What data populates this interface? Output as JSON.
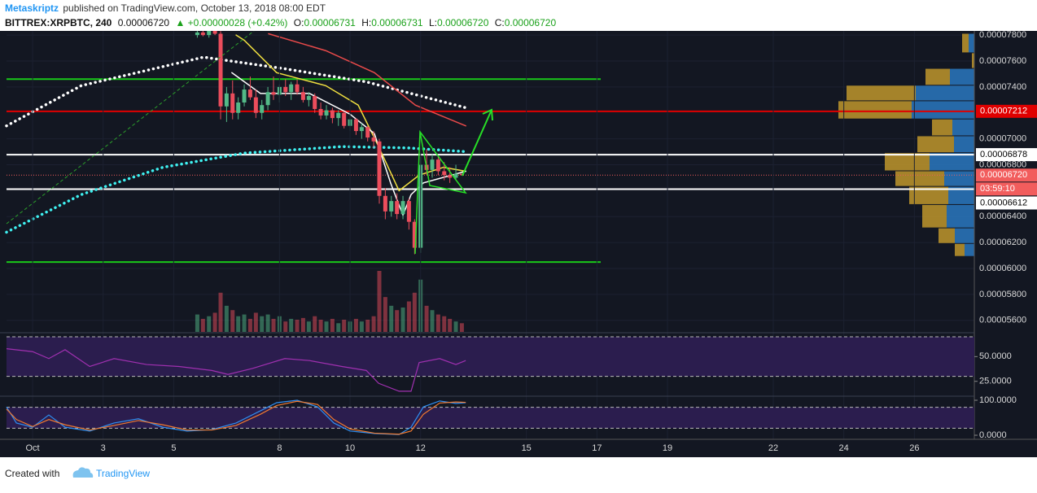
{
  "header": {
    "author": "Metaskriptz",
    "published": "published on TradingView.com, October 13, 2018 08:00 EDT"
  },
  "symbol": {
    "name": "BITTREX:XRPBTC, 240",
    "last": "0.00006720",
    "change": "▲ +0.00000028 (+0.42%)",
    "o_label": "O:",
    "open": "0.00006731",
    "h_label": "H:",
    "high": "0.00006731",
    "l_label": "L:",
    "low": "0.00006720",
    "c_label": "C:",
    "close": "0.00006720"
  },
  "chart_data": {
    "type": "candlestick",
    "up_color": "#53b987",
    "down_color": "#eb4d5c",
    "xlim": [
      0.26,
      27.7
    ],
    "xticks": [
      {
        "value": 1,
        "label": "Oct"
      },
      3,
      5,
      8,
      10,
      12,
      15,
      17,
      19,
      22,
      24,
      26
    ],
    "ylim": [
      5.511e-05,
      7.832e-05
    ],
    "yticks": [
      {
        "value": 7.8e-05,
        "label": "0.00007800"
      },
      {
        "value": 7.6e-05,
        "label": "0.00007600"
      },
      {
        "value": 7.4e-05,
        "label": "0.00007400"
      },
      {
        "value": 7e-05,
        "label": "0.00007000"
      },
      {
        "value": 6.8e-05,
        "label": "0.00006800"
      },
      {
        "value": 6.4e-05,
        "label": "0.00006400"
      },
      {
        "value": 6.2e-05,
        "label": "0.00006200"
      },
      {
        "value": 6e-05,
        "label": "0.00006000"
      },
      {
        "value": 5.8e-05,
        "label": "0.00005800"
      },
      {
        "value": 5.6e-05,
        "label": "0.00005600"
      }
    ],
    "grid": true,
    "x": [
      5.67,
      5.83,
      6,
      6.17,
      6.33,
      6.5,
      6.67,
      6.83,
      7,
      7.17,
      7.33,
      7.5,
      7.67,
      7.83,
      8,
      8.17,
      8.33,
      8.5,
      8.67,
      8.83,
      9,
      9.17,
      9.33,
      9.5,
      9.67,
      9.83,
      10,
      10.17,
      10.33,
      10.5,
      10.67,
      10.83,
      11,
      11.17,
      11.33,
      11.5,
      11.67,
      11.83,
      12,
      12.17,
      12.33,
      12.5,
      12.67,
      12.83,
      13,
      13.17
    ],
    "open": [
      7.8e-05,
      7.82e-05,
      7.8e-05,
      7.85e-05,
      7.81e-05,
      7.25e-05,
      7.35e-05,
      7.2e-05,
      7.28e-05,
      7.38e-05,
      7.32e-05,
      7.2e-05,
      7.26e-05,
      7.36e-05,
      7.34e-05,
      7.4e-05,
      7.36e-05,
      7.42e-05,
      7.36e-05,
      7.3e-05,
      7.33e-05,
      7.23e-05,
      7.18e-05,
      7.22e-05,
      7.16e-05,
      7.2e-05,
      7.1e-05,
      7.15e-05,
      7.06e-05,
      7.09e-05,
      7.01e-05,
      6.98e-05,
      6.56e-05,
      6.44e-05,
      6.52e-05,
      6.42e-05,
      6.52e-05,
      6.36e-05,
      6.16e-05,
      6.8e-05,
      6.76e-05,
      6.84e-05,
      6.75e-05,
      6.72e-05,
      6.7e-05,
      6.731e-05
    ],
    "high": [
      7.85e-05,
      7.86e-05,
      7.88e-05,
      7.9e-05,
      7.83e-05,
      7.4e-05,
      7.45e-05,
      7.32e-05,
      7.42e-05,
      7.48e-05,
      7.38e-05,
      7.3e-05,
      7.4e-05,
      7.48e-05,
      7.42e-05,
      7.46e-05,
      7.44e-05,
      7.46e-05,
      7.4e-05,
      7.36e-05,
      7.35e-05,
      7.28e-05,
      7.26e-05,
      7.24e-05,
      7.22e-05,
      7.21e-05,
      7.18e-05,
      7.16e-05,
      7.12e-05,
      7.1e-05,
      7.06e-05,
      7e-05,
      6.62e-05,
      6.56e-05,
      6.58e-05,
      6.56e-05,
      6.54e-05,
      6.38e-05,
      6.86e-05,
      6.92e-05,
      6.88e-05,
      6.87e-05,
      6.82e-05,
      6.78e-05,
      6.8e-05,
      6.731e-05
    ],
    "low": [
      7.78e-05,
      7.79e-05,
      7.78e-05,
      7.8e-05,
      7.15e-05,
      7.13e-05,
      7.15e-05,
      7.15e-05,
      7.25e-05,
      7.3e-05,
      7.16e-05,
      7.15e-05,
      7.22e-05,
      7.3e-05,
      7.28e-05,
      7.33e-05,
      7.3e-05,
      7.34e-05,
      7.28e-05,
      7.25e-05,
      7.2e-05,
      7.15e-05,
      7.15e-05,
      7.12e-05,
      7.1e-05,
      7.08e-05,
      7.06e-05,
      7.03e-05,
      7e-05,
      6.98e-05,
      6.93e-05,
      6.5e-05,
      6.38e-05,
      6.4e-05,
      6.38e-05,
      6.38e-05,
      6.3e-05,
      6.11e-05,
      6.12e-05,
      6.72e-05,
      6.7e-05,
      6.72e-05,
      6.68e-05,
      6.66e-05,
      6.68e-05,
      6.72e-05
    ],
    "close": [
      7.82e-05,
      7.8e-05,
      7.85e-05,
      7.81e-05,
      7.25e-05,
      7.35e-05,
      7.2e-05,
      7.28e-05,
      7.38e-05,
      7.32e-05,
      7.2e-05,
      7.26e-05,
      7.36e-05,
      7.34e-05,
      7.4e-05,
      7.36e-05,
      7.42e-05,
      7.36e-05,
      7.3e-05,
      7.33e-05,
      7.23e-05,
      7.18e-05,
      7.22e-05,
      7.16e-05,
      7.2e-05,
      7.1e-05,
      7.15e-05,
      7.06e-05,
      7.09e-05,
      7.01e-05,
      6.98e-05,
      6.56e-05,
      6.44e-05,
      6.52e-05,
      6.42e-05,
      6.52e-05,
      6.36e-05,
      6.16e-05,
      6.8e-05,
      6.76e-05,
      6.84e-05,
      6.75e-05,
      6.72e-05,
      6.7e-05,
      6.731e-05,
      6.72e-05
    ],
    "volume": [
      20,
      15,
      18,
      22,
      45,
      30,
      25,
      18,
      20,
      15,
      22,
      18,
      20,
      15,
      18,
      12,
      15,
      14,
      16,
      12,
      18,
      14,
      12,
      15,
      10,
      14,
      12,
      15,
      12,
      14,
      18,
      70,
      40,
      30,
      25,
      28,
      35,
      45,
      60,
      30,
      25,
      20,
      18,
      15,
      12,
      10
    ],
    "series": [
      {
        "color": "#ffffff",
        "style": "dotted",
        "x": [
          0.26,
          2.38,
          5.85,
          8.15,
          10.45,
          13.28
        ],
        "values": [
          7.1e-05,
          7.41e-05,
          7.63e-05,
          7.54e-05,
          7.44e-05,
          7.24e-05
        ]
      },
      {
        "color": "#3ff0f0",
        "style": "dotted",
        "x": [
          0.26,
          2.38,
          4.69,
          7.0,
          9.77,
          11.62,
          13.35
        ],
        "values": [
          6.28e-05,
          6.57e-05,
          6.78e-05,
          6.89e-05,
          6.94e-05,
          6.93e-05,
          6.9e-05
        ]
      },
      {
        "color": "#e84a4a",
        "style": "solid",
        "x": [
          7.69,
          9.31,
          10.69,
          11.85,
          13.28
        ],
        "values": [
          7.81e-05,
          7.68e-05,
          7.51e-05,
          7.26e-05,
          7.1e-05
        ]
      },
      {
        "color": "#f0e040",
        "style": "solid",
        "x": [
          6.77,
          7.0,
          7.92,
          9.31,
          10.23,
          10.81,
          11.39,
          11.96,
          12.65,
          13.28
        ],
        "values": [
          7.8e-05,
          7.76e-05,
          7.51e-05,
          7.41e-05,
          7.26e-05,
          6.94e-05,
          6.6e-05,
          6.72e-05,
          6.78e-05,
          6.75e-05
        ]
      },
      {
        "color": "#ffffff",
        "style": "solid",
        "x": [
          6.65,
          7.46,
          8.85,
          10.0,
          10.69,
          11.15,
          11.5,
          11.73,
          12.08,
          13.28
        ],
        "values": [
          7.51e-05,
          7.35e-05,
          7.35e-05,
          7.19e-05,
          7.04e-05,
          6.66e-05,
          6.41e-05,
          6.57e-05,
          6.66e-05,
          6.75e-05
        ]
      }
    ],
    "levels": [
      {
        "value": 7.46e-05,
        "color": "#19c819"
      },
      {
        "value": 7.212e-05,
        "color": "#e00000",
        "label": "0.00007212"
      },
      {
        "value": 6.878e-05,
        "color": "#ffffff",
        "label": "0.00006878"
      },
      {
        "value": 6.612e-05,
        "color": "#ffffff",
        "label": "0.00006612"
      },
      {
        "value": 6.05e-05,
        "color": "#19c819"
      }
    ],
    "last_price": {
      "value": 6.72e-05,
      "label": "0.00006720",
      "color": "#f25d5d"
    },
    "countdown": "03:59:10",
    "volume_profile": {
      "bins": [
        6.09e-05,
        6.19e-05,
        6.31e-05,
        6.49e-05,
        6.63e-05,
        6.75e-05,
        6.89e-05,
        7.02e-05,
        7.15e-05,
        7.29e-05,
        7.41e-05,
        7.54e-05,
        7.66e-05,
        7.81e-05
      ],
      "up": [
        12,
        24,
        34,
        32,
        37,
        55,
        25,
        27,
        77,
        72,
        30,
        0,
        7
      ],
      "down": [
        12,
        20,
        30,
        48,
        60,
        55,
        45,
        25,
        90,
        85,
        30,
        3,
        8
      ],
      "up_color": "#2a78c0",
      "down_color": "#c0962c"
    },
    "rsi": {
      "ylim": [
        10.8,
        73.3
      ],
      "yticks": [
        {
          "value": 50,
          "label": "50.0000"
        },
        {
          "value": 25,
          "label": "25.0000"
        }
      ],
      "bands": [
        30,
        70
      ],
      "color": "#a030b0",
      "x": [
        0.26,
        1,
        1.46,
        1.92,
        2.62,
        3.31,
        4.23,
        5.15,
        6.08,
        6.54,
        7.23,
        8.15,
        8.85,
        9.77,
        10.46,
        10.81,
        11.39,
        11.73,
        11.96,
        12.54,
        13.0,
        13.28
      ],
      "values": [
        58,
        55,
        48,
        57,
        40,
        48,
        42,
        40,
        36,
        32,
        38,
        48,
        46,
        40,
        36,
        23,
        15,
        15,
        44,
        48,
        42,
        46
      ]
    },
    "stoch": {
      "ylim": [
        -11.6,
        109.3
      ],
      "yticks": [
        {
          "value": 100,
          "label": "100.0000"
        },
        {
          "value": 0,
          "label": "0.0000"
        }
      ],
      "bands": [
        20,
        80
      ],
      "x": [
        0.26,
        0.54,
        1,
        1.46,
        1.92,
        2.62,
        3.31,
        4.0,
        4.69,
        5.38,
        6.08,
        6.77,
        7.46,
        7.92,
        8.5,
        9.08,
        9.54,
        10.0,
        10.69,
        11.39,
        11.73,
        12.08,
        12.54,
        13.0,
        13.28
      ],
      "series": [
        {
          "color": "#2f8ef0",
          "values": [
            81,
            35,
            23,
            58,
            23,
            12,
            35,
            47,
            23,
            12,
            16,
            35,
            70,
            93,
            100,
            81,
            35,
            12,
            5,
            2,
            23,
            81,
            98,
            91,
            93
          ]
        },
        {
          "color": "#f07a30",
          "values": [
            75,
            45,
            25,
            45,
            30,
            15,
            28,
            42,
            30,
            15,
            15,
            28,
            60,
            85,
            97,
            88,
            45,
            18,
            6,
            3,
            12,
            60,
            92,
            95,
            94
          ]
        }
      ]
    }
  },
  "footer": {
    "created": "Created with",
    "brand": "TradingView"
  }
}
